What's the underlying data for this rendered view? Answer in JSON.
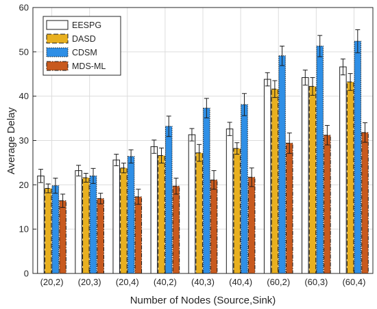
{
  "chart_data": {
    "type": "bar",
    "title": "",
    "xlabel": "Number of Nodes (Source,Sink)",
    "ylabel": "Average Delay",
    "ylim": [
      0,
      60
    ],
    "yticks": [
      0,
      10,
      20,
      30,
      40,
      50,
      60
    ],
    "grid": true,
    "legend_position": "top-left",
    "categories": [
      "(20,2)",
      "(20,3)",
      "(20,4)",
      "(40,2)",
      "(40,3)",
      "(40,4)",
      "(60,2)",
      "(60,3)",
      "(60,4)"
    ],
    "series": [
      {
        "name": "EESPG",
        "color": "#ffffff",
        "pattern": "solid",
        "values": [
          22.0,
          23.2,
          25.6,
          28.6,
          31.3,
          32.6,
          43.8,
          44.2,
          46.6
        ],
        "errors": [
          1.5,
          1.2,
          1.3,
          1.5,
          1.4,
          1.5,
          1.5,
          1.7,
          1.8
        ]
      },
      {
        "name": "DASD",
        "color": "#e8b020",
        "pattern": "dashed",
        "values": [
          19.2,
          21.6,
          23.8,
          26.6,
          27.2,
          28.2,
          41.6,
          42.2,
          43.2
        ],
        "errors": [
          1.0,
          1.0,
          1.1,
          1.7,
          1.9,
          1.3,
          1.9,
          2.0,
          1.9
        ]
      },
      {
        "name": "CDSM",
        "color": "#2f8fe6",
        "pattern": "dotted",
        "values": [
          19.8,
          22.0,
          26.4,
          33.2,
          37.3,
          38.1,
          49.1,
          51.3,
          52.4
        ],
        "errors": [
          1.7,
          1.7,
          1.5,
          2.3,
          2.2,
          2.5,
          2.2,
          2.4,
          2.6
        ]
      },
      {
        "name": "MDS-ML",
        "color": "#c85a1e",
        "pattern": "dashdot",
        "values": [
          16.4,
          16.9,
          17.3,
          19.7,
          21.1,
          21.7,
          29.4,
          31.2,
          31.8
        ],
        "errors": [
          1.5,
          1.2,
          1.7,
          1.8,
          2.1,
          2.1,
          2.3,
          2.2,
          2.2
        ]
      }
    ]
  }
}
